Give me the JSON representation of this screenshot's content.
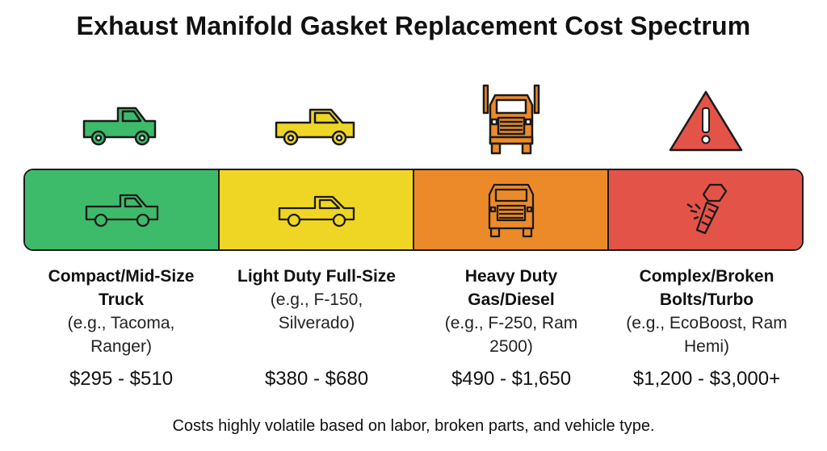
{
  "title": "Exhaust Manifold Gasket Replacement Cost Spectrum",
  "tiers": [
    {
      "name_line1": "Compact/Mid-Size",
      "name_line2": "Truck",
      "example_line1": "(e.g., Tacoma,",
      "example_line2": "Ranger)",
      "price": "$295 - $510",
      "color": "#3dbb6a",
      "icon": "pickup-truck-icon"
    },
    {
      "name_line1": "Light Duty Full-Size",
      "name_line2": "",
      "example_line1": "(e.g., F-150,",
      "example_line2": "Silverado)",
      "price": "$380 - $680",
      "color": "#f0d624",
      "icon": "pickup-truck-icon"
    },
    {
      "name_line1": "Heavy Duty",
      "name_line2": "Gas/Diesel",
      "example_line1": "(e.g., F-250, Ram",
      "example_line2": "2500)",
      "price": "$490 - $1,650",
      "color": "#ec8a2a",
      "icon": "semi-truck-icon"
    },
    {
      "name_line1": "Complex/Broken",
      "name_line2": "Bolts/Turbo",
      "example_line1": "(e.g., EcoBoost, Ram",
      "example_line2": "Hemi)",
      "price": "$1,200 - $3,000+",
      "color": "#e45348",
      "icon": "warning-icon"
    }
  ],
  "band_icons": [
    "pickup-truck-outline-icon",
    "pickup-truck-outline-icon",
    "semi-truck-outline-icon",
    "broken-bolt-icon"
  ],
  "footer": "Costs highly volatile based on labor, broken parts, and vehicle type."
}
